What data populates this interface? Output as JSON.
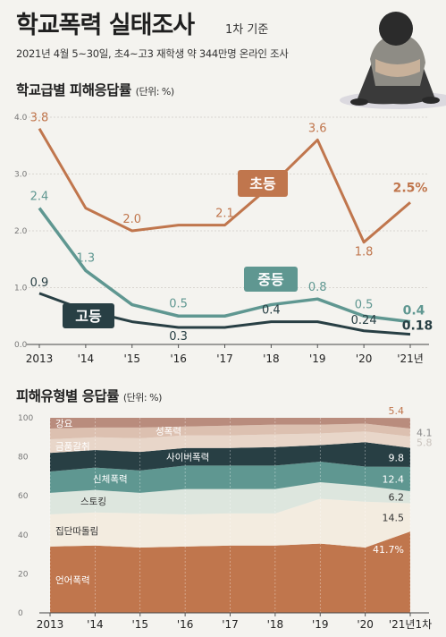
{
  "header": {
    "title": "학교폭력 실태조사",
    "title_sub": "1차 기준",
    "subtitle": "2021년 4월 5~30일, 초4~고3 재학생 약 344만명 온라인 조사"
  },
  "chart_data": [
    {
      "type": "line",
      "title": "학교급별 피해응답률",
      "unit": "(단위: %)",
      "categories": [
        "2013",
        "'14",
        "'15",
        "'16",
        "'17",
        "'18",
        "'19",
        "'20",
        "'21년"
      ],
      "ylim": [
        0,
        4.0
      ],
      "yticks": [
        "0.0",
        "1.0",
        "2.0",
        "3.0",
        "4.0"
      ],
      "series": [
        {
          "name": "초등",
          "color": "#c0764d",
          "values": [
            3.8,
            2.4,
            2.0,
            2.1,
            2.1,
            2.8,
            3.6,
            1.8,
            2.5
          ],
          "labels": [
            "3.8",
            "",
            "2.0",
            "",
            "2.1",
            "",
            "3.6",
            "1.8",
            "2.5%"
          ]
        },
        {
          "name": "중등",
          "color": "#5f9791",
          "values": [
            2.4,
            1.3,
            0.7,
            0.5,
            0.5,
            0.7,
            0.8,
            0.5,
            0.4
          ],
          "labels": [
            "2.4",
            "1.3",
            "",
            "0.5",
            "",
            "",
            "0.8",
            "0.5",
            "0.4"
          ]
        },
        {
          "name": "고등",
          "color": "#283f44",
          "values": [
            0.9,
            0.6,
            0.4,
            0.3,
            0.3,
            0.4,
            0.4,
            0.24,
            0.18
          ],
          "labels": [
            "0.9",
            "",
            "",
            "0.3",
            "",
            "0.4",
            "",
            "0.24",
            "0.18"
          ]
        }
      ]
    },
    {
      "type": "area",
      "title": "피해유형별 응답률",
      "unit": "(단위: %)",
      "categories": [
        "2013",
        "'14",
        "'15",
        "'16",
        "'17",
        "'18",
        "'19",
        "'20",
        "'21년1차"
      ],
      "ylim": [
        0,
        100
      ],
      "yticks": [
        "0",
        "20",
        "40",
        "60",
        "80",
        "100"
      ],
      "series": [
        {
          "name": "언어폭력",
          "color": "#c0764d",
          "label": "41.7%",
          "values": [
            34.0,
            34.5,
            33.5,
            34.0,
            34.5,
            34.5,
            35.5,
            33.5,
            41.7
          ]
        },
        {
          "name": "집단따돌림",
          "color": "#f3ece0",
          "label": "14.5",
          "values": [
            16.5,
            17.0,
            17.5,
            16.5,
            16.5,
            16.5,
            23.0,
            23.5,
            14.5
          ]
        },
        {
          "name": "스토킹",
          "color": "#dde6de",
          "label": "6.2",
          "values": [
            11.0,
            11.5,
            10.5,
            13.0,
            12.5,
            12.5,
            8.5,
            8.0,
            6.2
          ]
        },
        {
          "name": "신체폭력",
          "color": "#5f9791",
          "label": "12.4",
          "values": [
            11.0,
            11.5,
            11.5,
            12.0,
            12.0,
            12.0,
            10.5,
            10.0,
            12.4
          ]
        },
        {
          "name": "사이버폭력",
          "color": "#283f44",
          "label": "9.8",
          "values": [
            9.5,
            9.0,
            9.5,
            9.0,
            9.0,
            9.5,
            8.5,
            12.5,
            9.8
          ]
        },
        {
          "name": "금품갈취",
          "color": "#e8d6c9",
          "label": "5.8",
          "values": [
            7.0,
            6.5,
            7.0,
            6.5,
            6.5,
            6.5,
            6.0,
            5.5,
            5.8
          ]
        },
        {
          "name": "성폭력",
          "color": "#dcc0b0",
          "label": "4.1",
          "values": [
            5.5,
            5.0,
            5.5,
            4.5,
            5.0,
            5.0,
            4.5,
            4.0,
            4.1
          ]
        },
        {
          "name": "강요",
          "color": "#b98c7d",
          "label": "5.4",
          "values": [
            5.5,
            5.0,
            5.0,
            4.5,
            4.0,
            3.5,
            3.5,
            3.0,
            5.4
          ]
        }
      ]
    }
  ]
}
